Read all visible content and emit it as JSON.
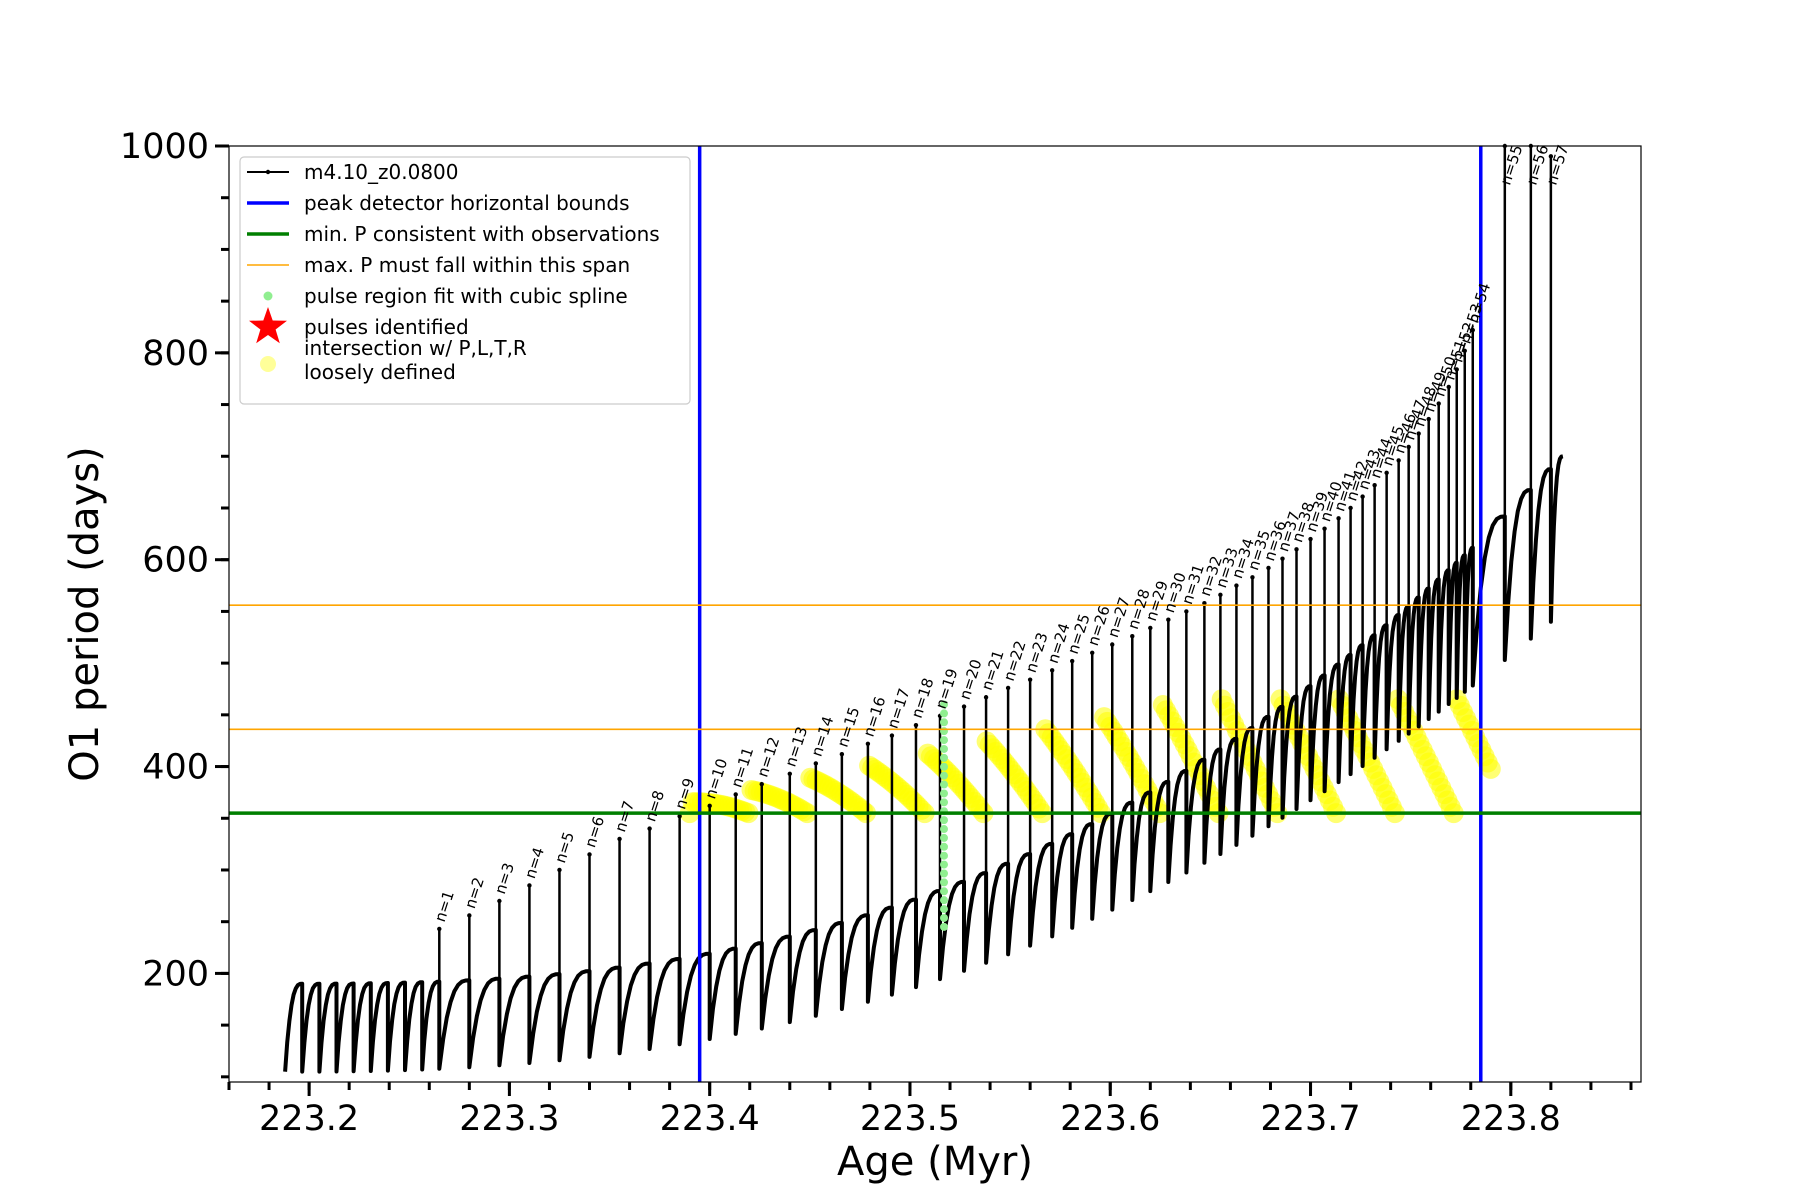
{
  "chart_data": {
    "type": "scatter",
    "xlabel": "Age (Myr)",
    "ylabel": "O1 period (days)",
    "xlim": [
      223.16,
      223.865
    ],
    "ylim": [
      95,
      1000
    ],
    "x_ticks": [
      "223.2",
      "223.3",
      "223.4",
      "223.5",
      "223.6",
      "223.7",
      "223.8"
    ],
    "x_tick_values": [
      223.2,
      223.3,
      223.4,
      223.5,
      223.6,
      223.7,
      223.8
    ],
    "y_ticks": [
      "200",
      "400",
      "600",
      "800",
      "1000"
    ],
    "y_tick_values": [
      200,
      400,
      600,
      800,
      1000
    ],
    "grid": false,
    "legend_position": "top-left",
    "legend": [
      {
        "label": "m4.10_z0.0800",
        "kind": "line-marker",
        "color": "#000000"
      },
      {
        "label": "peak detector horizontal bounds",
        "kind": "line",
        "color": "#0000ff"
      },
      {
        "label": "min. P consistent with observations",
        "kind": "line",
        "color": "#007f00"
      },
      {
        "label": "max. P must fall within this span",
        "kind": "thin-line",
        "color": "#ffa500"
      },
      {
        "label": "pulse region fit with cubic spline",
        "kind": "dot",
        "color": "#90ee90"
      },
      {
        "label": "pulses identified",
        "kind": "star",
        "color": "#ff0000"
      },
      {
        "label": "intersection w/ P,L,T,R",
        "label2": "loosely defined",
        "kind": "big-dot",
        "color": "#ffff99"
      }
    ],
    "vertical_lines": [
      {
        "x": 223.395,
        "color": "#0000ff"
      },
      {
        "x": 223.785,
        "color": "#0000ff"
      }
    ],
    "horizontal_lines": [
      {
        "y": 355,
        "color": "#007f00"
      },
      {
        "y": 436,
        "color": "#ffa500"
      },
      {
        "y": 556,
        "color": "#ffa500"
      }
    ],
    "series": [
      {
        "name": "m4.10_z0.0800",
        "x_start": 223.188,
        "x_end": 223.826,
        "baseline_start": 190,
        "baseline_end": 700,
        "dip_start": 105,
        "dip_end": 550,
        "pulse_count": 57,
        "pulses": [
          {
            "n": 1,
            "x": 223.265,
            "peak": 243
          },
          {
            "n": 2,
            "x": 223.28,
            "peak": 256
          },
          {
            "n": 3,
            "x": 223.295,
            "peak": 270
          },
          {
            "n": 4,
            "x": 223.31,
            "peak": 285
          },
          {
            "n": 5,
            "x": 223.325,
            "peak": 300
          },
          {
            "n": 6,
            "x": 223.34,
            "peak": 315
          },
          {
            "n": 7,
            "x": 223.355,
            "peak": 330
          },
          {
            "n": 8,
            "x": 223.37,
            "peak": 340
          },
          {
            "n": 9,
            "x": 223.385,
            "peak": 352
          },
          {
            "n": 10,
            "x": 223.4,
            "peak": 362
          },
          {
            "n": 11,
            "x": 223.413,
            "peak": 373
          },
          {
            "n": 12,
            "x": 223.426,
            "peak": 383
          },
          {
            "n": 13,
            "x": 223.44,
            "peak": 393
          },
          {
            "n": 14,
            "x": 223.453,
            "peak": 403
          },
          {
            "n": 15,
            "x": 223.466,
            "peak": 412
          },
          {
            "n": 16,
            "x": 223.479,
            "peak": 422
          },
          {
            "n": 17,
            "x": 223.491,
            "peak": 430
          },
          {
            "n": 18,
            "x": 223.503,
            "peak": 440
          },
          {
            "n": 19,
            "x": 223.515,
            "peak": 449
          },
          {
            "n": 20,
            "x": 223.527,
            "peak": 458
          },
          {
            "n": 21,
            "x": 223.538,
            "peak": 467
          },
          {
            "n": 22,
            "x": 223.549,
            "peak": 476
          },
          {
            "n": 23,
            "x": 223.56,
            "peak": 484
          },
          {
            "n": 24,
            "x": 223.571,
            "peak": 493
          },
          {
            "n": 25,
            "x": 223.581,
            "peak": 502
          },
          {
            "n": 26,
            "x": 223.591,
            "peak": 510
          },
          {
            "n": 27,
            "x": 223.601,
            "peak": 518
          },
          {
            "n": 28,
            "x": 223.611,
            "peak": 526
          },
          {
            "n": 29,
            "x": 223.62,
            "peak": 534
          },
          {
            "n": 30,
            "x": 223.629,
            "peak": 542
          },
          {
            "n": 31,
            "x": 223.638,
            "peak": 550
          },
          {
            "n": 32,
            "x": 223.647,
            "peak": 558
          },
          {
            "n": 33,
            "x": 223.655,
            "peak": 566
          },
          {
            "n": 34,
            "x": 223.663,
            "peak": 575
          },
          {
            "n": 35,
            "x": 223.671,
            "peak": 583
          },
          {
            "n": 36,
            "x": 223.679,
            "peak": 592
          },
          {
            "n": 37,
            "x": 223.686,
            "peak": 601
          },
          {
            "n": 38,
            "x": 223.693,
            "peak": 610
          },
          {
            "n": 39,
            "x": 223.7,
            "peak": 620
          },
          {
            "n": 40,
            "x": 223.707,
            "peak": 630
          },
          {
            "n": 41,
            "x": 223.714,
            "peak": 640
          },
          {
            "n": 42,
            "x": 223.72,
            "peak": 650
          },
          {
            "n": 43,
            "x": 223.726,
            "peak": 661
          },
          {
            "n": 44,
            "x": 223.732,
            "peak": 672
          },
          {
            "n": 45,
            "x": 223.738,
            "peak": 684
          },
          {
            "n": 46,
            "x": 223.744,
            "peak": 696
          },
          {
            "n": 47,
            "x": 223.749,
            "peak": 709
          },
          {
            "n": 48,
            "x": 223.754,
            "peak": 722
          },
          {
            "n": 49,
            "x": 223.759,
            "peak": 736
          },
          {
            "n": 50,
            "x": 223.764,
            "peak": 751
          },
          {
            "n": 51,
            "x": 223.769,
            "peak": 767
          },
          {
            "n": 52,
            "x": 223.773,
            "peak": 784
          },
          {
            "n": 53,
            "x": 223.777,
            "peak": 802
          },
          {
            "n": 54,
            "x": 223.781,
            "peak": 822
          },
          {
            "n": 55,
            "x": 223.797,
            "peak": 1000
          },
          {
            "n": 56,
            "x": 223.81,
            "peak": 1000
          },
          {
            "n": 57,
            "x": 223.82,
            "peak": 990
          }
        ]
      },
      {
        "name": "pulse region fit with cubic spline",
        "x": 223.517,
        "y_range": [
          245,
          460
        ]
      },
      {
        "name": "intersection w/ P,L,T,R loosely defined",
        "region_x": [
          223.39,
          223.79
        ],
        "region_y": [
          355,
          465
        ]
      }
    ]
  }
}
